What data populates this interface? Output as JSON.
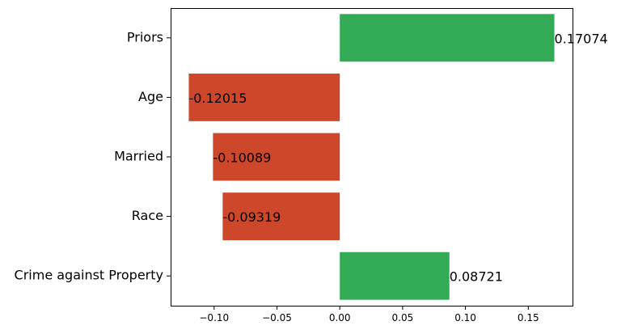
{
  "chart_data": {
    "type": "bar",
    "orientation": "horizontal",
    "categories": [
      "Priors",
      "Age",
      "Married",
      "Race",
      "Crime against Property"
    ],
    "values": [
      0.17074,
      -0.12015,
      -0.10089,
      -0.09319,
      0.08721
    ],
    "value_labels": [
      "0.17074",
      "-0.12015",
      "-0.10089",
      "-0.09319",
      "0.08721"
    ],
    "xticks": [
      -0.1,
      -0.05,
      0.0,
      0.05,
      0.1,
      0.15
    ],
    "xtick_labels": [
      "−0.10",
      "−0.05",
      "0.00",
      "0.05",
      "0.10",
      "0.15"
    ],
    "xlim": [
      -0.1346,
      0.1852
    ],
    "title": "",
    "xlabel": "",
    "ylabel": "",
    "grid": false,
    "colors": {
      "positive": "#33aa55",
      "negative": "#cf472b"
    }
  }
}
